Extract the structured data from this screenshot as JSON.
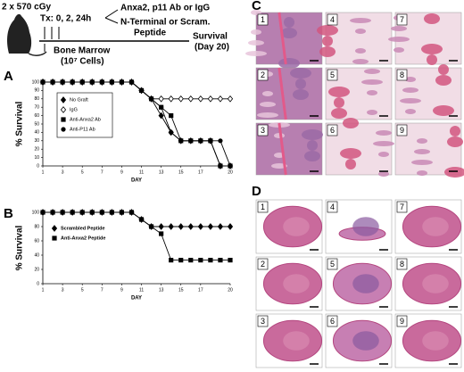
{
  "schematic": {
    "dose": "2 x 570 cGy",
    "treatment": "Tx: 0, 2, 24h",
    "option_1": "Anxa2, p11 Ab or IgG",
    "option_2": "N-Terminal or Scram.",
    "option_2_cont": "Peptide",
    "graft": "Bone Marrow",
    "graft_cells": "(10⁷ Cells)",
    "endpoint": "Survival",
    "endpoint_day": "(Day 20)"
  },
  "panel_labels": [
    "A",
    "B",
    "C",
    "D"
  ],
  "panels": {
    "C": {
      "tiles": [
        "1",
        "2",
        "3",
        "4",
        "5",
        "6",
        "7",
        "8",
        "9"
      ]
    },
    "D": {
      "tiles": [
        "1",
        "2",
        "3",
        "4",
        "5",
        "6",
        "7",
        "8",
        "9"
      ]
    }
  },
  "chart_data": [
    {
      "type": "line",
      "ylabel": "% Survival",
      "xlabel": "DAY",
      "legend": "upper left",
      "grid": false,
      "x": [
        1,
        2,
        3,
        4,
        5,
        6,
        7,
        8,
        9,
        10,
        11,
        12,
        13,
        14,
        15,
        16,
        17,
        18,
        19,
        20
      ],
      "xlim": [
        1,
        20
      ],
      "xticks": [
        1,
        3,
        5,
        7,
        9,
        11,
        13,
        15,
        17,
        20
      ],
      "ylim": [
        0,
        100
      ],
      "yticks": [
        0,
        10,
        20,
        30,
        40,
        50,
        60,
        70,
        80,
        90,
        100
      ],
      "series": [
        {
          "name": "No Graft",
          "color": "#000000",
          "marker": "diamond",
          "values": [
            100,
            100,
            100,
            100,
            100,
            100,
            100,
            100,
            100,
            100,
            90,
            80,
            60,
            40,
            30,
            30,
            30,
            30,
            0,
            0
          ]
        },
        {
          "name": "IgG",
          "color": "#000000",
          "marker": "open-diamond",
          "values": [
            100,
            100,
            100,
            100,
            100,
            100,
            100,
            100,
            100,
            100,
            90,
            80,
            80,
            80,
            80,
            80,
            80,
            80,
            80,
            80
          ]
        },
        {
          "name": "Anti-Anxa2 Ab",
          "color": "#000000",
          "marker": "square",
          "values": [
            100,
            100,
            100,
            100,
            100,
            100,
            100,
            100,
            100,
            100,
            90,
            80,
            70,
            60,
            30,
            30,
            30,
            30,
            0,
            0
          ]
        },
        {
          "name": "Anti-P11 Ab",
          "color": "#000000",
          "marker": "circle",
          "values": [
            100,
            100,
            100,
            100,
            100,
            100,
            100,
            100,
            100,
            100,
            90,
            80,
            70,
            40,
            30,
            30,
            30,
            30,
            30,
            0
          ]
        }
      ]
    },
    {
      "type": "line",
      "ylabel": "% Survival",
      "xlabel": "DAY",
      "legend": "upper left",
      "grid": false,
      "x": [
        1,
        2,
        3,
        4,
        5,
        6,
        7,
        8,
        9,
        10,
        11,
        12,
        13,
        14,
        15,
        16,
        17,
        18,
        19,
        20
      ],
      "xlim": [
        1,
        20
      ],
      "xticks": [
        1,
        3,
        5,
        7,
        9,
        11,
        13,
        15,
        17,
        20
      ],
      "ylim": [
        0,
        100
      ],
      "yticks": [
        0,
        20,
        40,
        60,
        80,
        100
      ],
      "series": [
        {
          "name": "Scrambled Peptide",
          "color": "#000000",
          "marker": "diamond",
          "values": [
            100,
            100,
            100,
            100,
            100,
            100,
            100,
            100,
            100,
            100,
            90,
            80,
            80,
            80,
            80,
            80,
            80,
            80,
            80,
            80
          ]
        },
        {
          "name": "Anti-Anxa2 Peptide",
          "color": "#000000",
          "marker": "square",
          "values": [
            100,
            100,
            100,
            100,
            100,
            100,
            100,
            100,
            100,
            100,
            90,
            80,
            70,
            33,
            33,
            33,
            33,
            33,
            33,
            33
          ]
        }
      ]
    }
  ]
}
